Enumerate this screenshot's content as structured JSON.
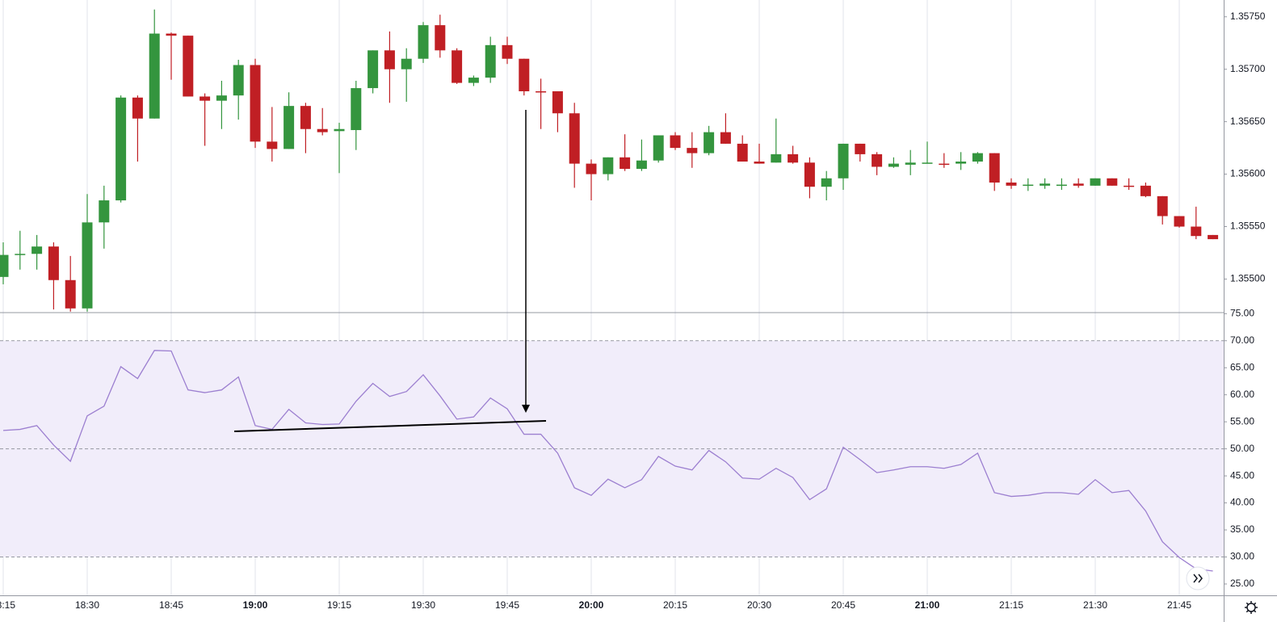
{
  "chart_data": [
    {
      "type": "candlestick",
      "x": [
        "18:15",
        "18:18",
        "18:21",
        "18:24",
        "18:27",
        "18:30",
        "18:33",
        "18:36",
        "18:39",
        "18:42",
        "18:45",
        "18:48",
        "18:51",
        "18:54",
        "18:57",
        "19:00",
        "19:03",
        "19:06",
        "19:09",
        "19:12",
        "19:15",
        "19:18",
        "19:21",
        "19:24",
        "19:27",
        "19:30",
        "19:33",
        "19:36",
        "19:39",
        "19:42",
        "19:45",
        "19:48",
        "19:51",
        "19:54",
        "19:57",
        "20:00",
        "20:03",
        "20:06",
        "20:09",
        "20:12",
        "20:15",
        "20:18",
        "20:21",
        "20:24",
        "20:27",
        "20:30",
        "20:33",
        "20:36",
        "20:39",
        "20:42",
        "20:45",
        "20:48",
        "20:51",
        "20:54",
        "20:57",
        "21:00",
        "21:03",
        "21:06",
        "21:09",
        "21:12",
        "21:15",
        "21:18",
        "21:21",
        "21:24",
        "21:27",
        "21:30",
        "21:33",
        "21:36",
        "21:39",
        "21:42",
        "21:45",
        "21:48",
        "21:51"
      ],
      "open": [
        1.35502,
        1.35523,
        1.35524,
        1.35531,
        1.35499,
        1.35472,
        1.35554,
        1.35575,
        1.35673,
        1.35653,
        1.35734,
        1.35732,
        1.35674,
        1.3567,
        1.35675,
        1.35704,
        1.35631,
        1.35624,
        1.35665,
        1.35643,
        1.35641,
        1.35642,
        1.35682,
        1.35718,
        1.357,
        1.3571,
        1.35742,
        1.35718,
        1.35687,
        1.35692,
        1.35723,
        1.3571,
        1.35679,
        1.35679,
        1.35658,
        1.3561,
        1.356,
        1.35616,
        1.35605,
        1.35613,
        1.35637,
        1.35625,
        1.3562,
        1.3564,
        1.35629,
        1.35612,
        1.35611,
        1.35619,
        1.35611,
        1.35588,
        1.35596,
        1.35629,
        1.35619,
        1.35607,
        1.35609,
        1.3561,
        1.3561,
        1.3561,
        1.35612,
        1.3562,
        1.35592,
        1.35589,
        1.35589,
        1.35589,
        1.35591,
        1.35589,
        1.35596,
        1.35589,
        1.35589,
        1.35579,
        1.3556,
        1.3555,
        1.35542
      ],
      "high": [
        1.35535,
        1.35546,
        1.35542,
        1.35535,
        1.35522,
        1.35581,
        1.35589,
        1.35675,
        1.35675,
        1.35757,
        1.35735,
        1.35732,
        1.35677,
        1.35689,
        1.35709,
        1.3571,
        1.35664,
        1.35678,
        1.35668,
        1.35663,
        1.35649,
        1.35689,
        1.35718,
        1.35736,
        1.3572,
        1.35745,
        1.35752,
        1.3572,
        1.35694,
        1.35731,
        1.35731,
        1.3571,
        1.35691,
        1.35679,
        1.35668,
        1.35614,
        1.35616,
        1.35638,
        1.35633,
        1.35637,
        1.3564,
        1.3564,
        1.35646,
        1.35658,
        1.35637,
        1.35629,
        1.35653,
        1.35627,
        1.35616,
        1.35603,
        1.35629,
        1.35629,
        1.35621,
        1.35616,
        1.35623,
        1.35631,
        1.3562,
        1.35621,
        1.35621,
        1.3562,
        1.35596,
        1.35596,
        1.35596,
        1.35596,
        1.35596,
        1.35596,
        1.35596,
        1.35596,
        1.35592,
        1.35579,
        1.3556,
        1.35569,
        1.35542
      ],
      "low": [
        1.35495,
        1.35509,
        1.35509,
        1.35471,
        1.35469,
        1.35469,
        1.35529,
        1.35573,
        1.35612,
        1.35653,
        1.3569,
        1.35674,
        1.35627,
        1.35643,
        1.35652,
        1.35625,
        1.35612,
        1.35624,
        1.3562,
        1.35637,
        1.35601,
        1.35623,
        1.35677,
        1.35668,
        1.35669,
        1.35706,
        1.35711,
        1.35686,
        1.35684,
        1.35687,
        1.35705,
        1.35675,
        1.35643,
        1.3564,
        1.35587,
        1.35575,
        1.35594,
        1.35603,
        1.35603,
        1.35611,
        1.35623,
        1.35606,
        1.35618,
        1.35629,
        1.35612,
        1.3561,
        1.35611,
        1.3561,
        1.35577,
        1.35575,
        1.35585,
        1.35612,
        1.35599,
        1.35606,
        1.35599,
        1.3561,
        1.35606,
        1.35604,
        1.3561,
        1.35584,
        1.35586,
        1.35584,
        1.35586,
        1.35585,
        1.35587,
        1.35589,
        1.35589,
        1.35585,
        1.35578,
        1.35552,
        1.35549,
        1.35538,
        1.35538
      ],
      "close": [
        1.35523,
        1.35524,
        1.35531,
        1.35499,
        1.35472,
        1.35554,
        1.35575,
        1.35673,
        1.35653,
        1.35734,
        1.35732,
        1.35674,
        1.3567,
        1.35675,
        1.35704,
        1.35631,
        1.35624,
        1.35665,
        1.35643,
        1.3564,
        1.35643,
        1.35682,
        1.35718,
        1.357,
        1.3571,
        1.35742,
        1.35718,
        1.35687,
        1.35692,
        1.35723,
        1.3571,
        1.35679,
        1.35678,
        1.35658,
        1.3561,
        1.356,
        1.35616,
        1.35605,
        1.35613,
        1.35637,
        1.35625,
        1.3562,
        1.3564,
        1.35629,
        1.35612,
        1.3561,
        1.35619,
        1.35611,
        1.35588,
        1.35596,
        1.35629,
        1.35619,
        1.35607,
        1.3561,
        1.35611,
        1.35611,
        1.35609,
        1.35612,
        1.3562,
        1.35592,
        1.35589,
        1.3559,
        1.35591,
        1.3559,
        1.35589,
        1.35596,
        1.35589,
        1.35588,
        1.35579,
        1.3556,
        1.3555,
        1.35541,
        1.35538
      ],
      "up_color": "#34953e",
      "down_color": "#c01f24",
      "ylim": [
        1.35468,
        1.35766
      ],
      "yticks": [
        {
          "value": 1.3575,
          "label": "1.35750"
        },
        {
          "value": 1.357,
          "label": "1.35700"
        },
        {
          "value": 1.3565,
          "label": "1.35650"
        },
        {
          "value": 1.356,
          "label": "1.35600"
        },
        {
          "value": 1.3555,
          "label": "1.35550"
        },
        {
          "value": 1.355,
          "label": "1.35500"
        }
      ],
      "xticks": [
        "18:15",
        "18:30",
        "18:45",
        "19:00",
        "19:15",
        "19:30",
        "19:45",
        "20:00",
        "20:15",
        "20:30",
        "20:45",
        "21:00",
        "21:15",
        "21:30",
        "21:45"
      ],
      "grid": true
    },
    {
      "type": "line",
      "values": [
        53.4,
        53.6,
        54.3,
        50.7,
        47.7,
        56.1,
        57.9,
        65.2,
        63.0,
        68.2,
        68.1,
        60.9,
        60.4,
        60.9,
        63.3,
        54.3,
        53.6,
        57.3,
        54.8,
        54.5,
        54.6,
        58.8,
        62.1,
        59.7,
        60.6,
        63.7,
        59.8,
        55.5,
        55.9,
        59.4,
        57.4,
        52.7,
        52.7,
        49.2,
        42.8,
        41.4,
        44.4,
        42.8,
        44.3,
        48.6,
        46.8,
        46.1,
        49.7,
        47.6,
        44.6,
        44.4,
        46.4,
        44.7,
        40.6,
        42.6,
        50.3,
        48.0,
        45.6,
        46.1,
        46.7,
        46.7,
        46.4,
        47.1,
        49.2,
        41.9,
        41.2,
        41.4,
        41.9,
        41.9,
        41.6,
        44.3,
        41.9,
        42.3,
        38.5,
        32.8,
        29.9,
        27.8,
        27.4
      ],
      "color": "#9c7fd0",
      "levels": [
        70,
        50,
        30
      ],
      "band_color": "#f1edfa",
      "ylim": [
        22.9,
        75.2
      ],
      "yticks": [
        {
          "value": 75,
          "label": "75.00"
        },
        {
          "value": 70,
          "label": "70.00"
        },
        {
          "value": 65,
          "label": "65.00"
        },
        {
          "value": 60,
          "label": "60.00"
        },
        {
          "value": 55,
          "label": "55.00"
        },
        {
          "value": 50,
          "label": "50.00"
        },
        {
          "value": 45,
          "label": "45.00"
        },
        {
          "value": 40,
          "label": "40.00"
        },
        {
          "value": 35,
          "label": "35.00"
        },
        {
          "value": 30,
          "label": "30.00"
        },
        {
          "value": 25,
          "label": "25.00"
        }
      ]
    }
  ]
}
